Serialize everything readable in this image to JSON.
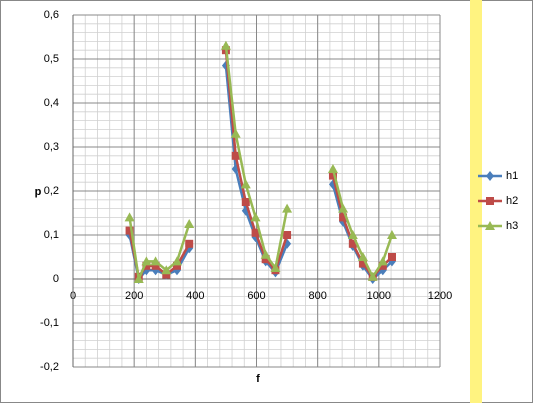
{
  "chart_data": {
    "type": "line",
    "x_label": "f",
    "y_label": "p",
    "x": [
      185,
      215,
      240,
      270,
      305,
      340,
      380,
      null,
      500,
      532,
      565,
      597,
      630,
      662,
      700,
      null,
      850,
      883,
      915,
      948,
      980,
      1013,
      1043
    ],
    "series": [
      {
        "name": "h1",
        "color": "#4a7ebb",
        "marker": "diamond",
        "values": [
          0.1,
          0.0,
          0.02,
          0.02,
          0.01,
          0.02,
          0.07,
          null,
          0.485,
          0.25,
          0.155,
          0.095,
          0.04,
          0.015,
          0.08,
          null,
          0.215,
          0.13,
          0.075,
          0.03,
          0.0,
          0.02,
          0.04
        ]
      },
      {
        "name": "h2",
        "color": "#be4b48",
        "marker": "square",
        "values": [
          0.11,
          0.005,
          0.03,
          0.03,
          0.01,
          0.03,
          0.08,
          null,
          0.52,
          0.28,
          0.175,
          0.105,
          0.045,
          0.02,
          0.1,
          null,
          0.235,
          0.14,
          0.08,
          0.035,
          0.005,
          0.03,
          0.05
        ]
      },
      {
        "name": "h3",
        "color": "#98b954",
        "marker": "triangle",
        "values": [
          0.14,
          0.0,
          0.04,
          0.04,
          0.02,
          0.04,
          0.125,
          null,
          0.53,
          0.33,
          0.215,
          0.14,
          0.055,
          0.025,
          0.16,
          null,
          0.25,
          0.16,
          0.1,
          0.05,
          0.005,
          0.04,
          0.1
        ]
      }
    ],
    "xlim": [
      0,
      1200
    ],
    "xticks": [
      0,
      200,
      400,
      600,
      800,
      1000,
      1200
    ],
    "ylim": [
      -0.2,
      0.6
    ],
    "yticks": [
      {
        "value": -0.2,
        "label": "-0,2"
      },
      {
        "value": -0.1,
        "label": "-0,1"
      },
      0,
      {
        "value": 0.1,
        "label": "0,1"
      },
      {
        "value": 0.2,
        "label": "0,2"
      },
      {
        "value": 0.3,
        "label": "0,3"
      },
      {
        "value": 0.4,
        "label": "0,4"
      },
      {
        "value": 0.5,
        "label": "0,5"
      },
      {
        "value": 0.6,
        "label": "0,6"
      }
    ],
    "grid": true,
    "minor_grid": {
      "x": 40,
      "y": 0.02
    },
    "legend": "right"
  }
}
